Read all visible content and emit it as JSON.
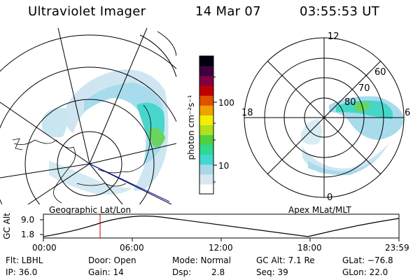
{
  "header": {
    "instrument": "Ultraviolet Imager",
    "date": "14 Mar 07",
    "time": "03:55:53 UT"
  },
  "colorbar": {
    "unit_label": "photon cm⁻²s⁻¹",
    "ticks": [
      "100",
      "10"
    ],
    "colors": [
      "#ffffff",
      "#d8e8f0",
      "#a8d8e8",
      "#40d8d0",
      "#30d890",
      "#50d040",
      "#b0e020",
      "#f0f000",
      "#f0a000",
      "#e05000",
      "#c00000",
      "#800040",
      "#400040",
      "#000010"
    ]
  },
  "left_panel": {
    "caption": "Geographic Lat/Lon"
  },
  "right_panel": {
    "caption": "Apex MLat/MLT",
    "mlt_labels": {
      "top": "12",
      "left": "18",
      "right": "6",
      "bottom": "0"
    },
    "lat_labels": [
      "60",
      "70",
      "80"
    ]
  },
  "timeline": {
    "y_label": "GC Alt",
    "y_ticks": [
      "9.0",
      "1.8"
    ],
    "x_ticks": [
      "00:00",
      "06:00",
      "12:00",
      "18:00",
      "23:59"
    ],
    "marker_color": "#d00000"
  },
  "status": {
    "row1": {
      "filter": "Flt: LBHL",
      "door": "Door: Open",
      "mode": "Mode: Normal",
      "gc_alt": "GC Alt: 7.1 Re",
      "glat": "GLat: −76.8"
    },
    "row2": {
      "ip": "IP: 36.0",
      "gain": "Gain: 14",
      "dsp_label": "Dsp:",
      "dsp_value": "2.8",
      "seq": "Seq: 39",
      "glon": "GLon:  22.0"
    }
  }
}
